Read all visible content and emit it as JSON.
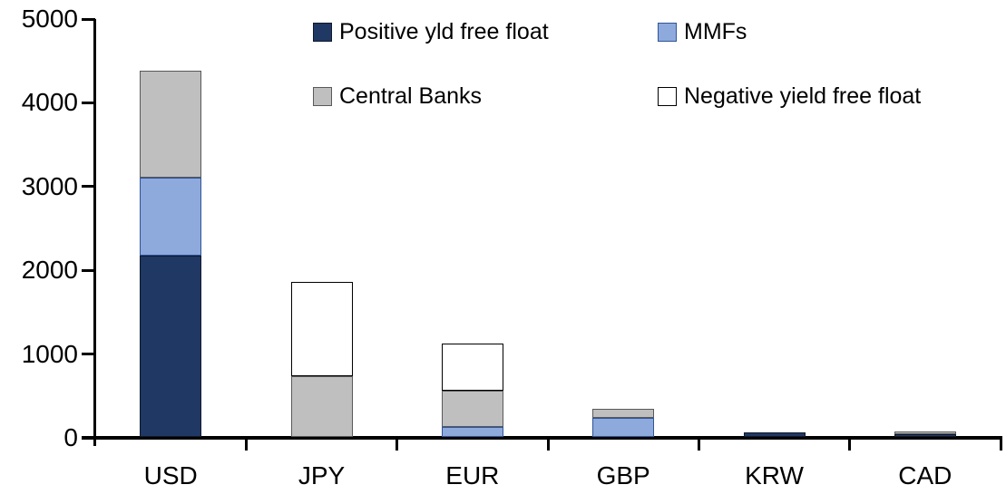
{
  "chart_data": {
    "type": "bar",
    "stacked": true,
    "title": "",
    "xlabel": "",
    "ylabel": "",
    "categories": [
      "USD",
      "JPY",
      "EUR",
      "GBP",
      "KRW",
      "CAD"
    ],
    "series": [
      {
        "name": "Positive yld free float",
        "color": "#1F3864",
        "border_color": "#10182b",
        "values": [
          2160,
          0,
          0,
          0,
          50,
          35
        ]
      },
      {
        "name": "MMFs",
        "color": "#8EA9DC",
        "border_color": "#2F5597",
        "values": [
          930,
          0,
          115,
          230,
          0,
          0
        ]
      },
      {
        "name": "Central Banks",
        "color": "#BFBFBF",
        "border_color": "#595959",
        "values": [
          1280,
          720,
          435,
          110,
          0,
          35
        ]
      },
      {
        "name": "Negative yield free float",
        "color": "#FFFFFF",
        "border_color": "#000000",
        "values": [
          0,
          1130,
          570,
          0,
          0,
          0
        ]
      }
    ],
    "stack_order_bottom_to_top": [
      "Positive yld free float",
      "MMFs",
      "Central Banks",
      "Negative yield free float"
    ],
    "totals_by_category": [
      4370,
      1850,
      1120,
      340,
      50,
      70
    ],
    "ylim": [
      0,
      5000
    ],
    "yticks": [
      0,
      1000,
      2000,
      3000,
      4000,
      5000
    ],
    "grid": false,
    "legend_position": "top, two columns, two rows",
    "axis_color": "#000000"
  }
}
